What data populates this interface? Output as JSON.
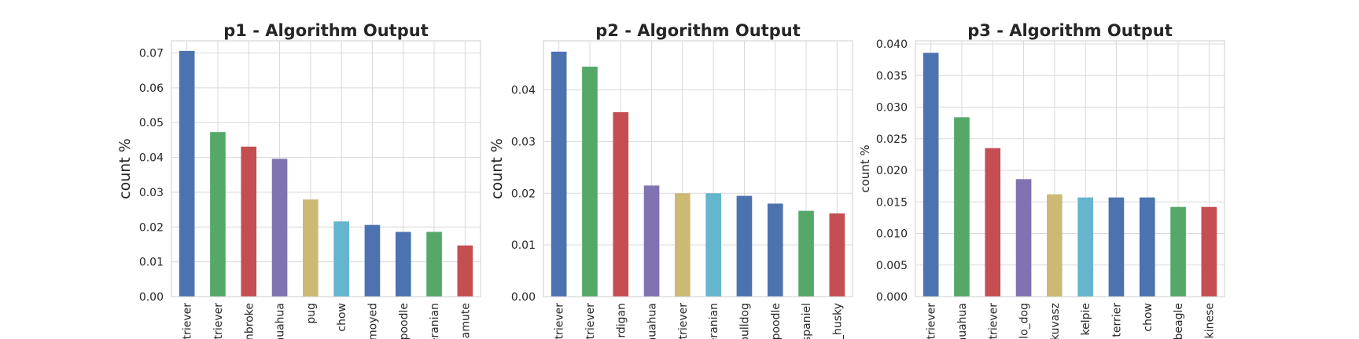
{
  "chart_data": [
    {
      "type": "bar",
      "title": "p1 - Algorithm Output",
      "xlabel": "",
      "ylabel": "count %",
      "ylim": [
        0,
        0.0735
      ],
      "yticks": [
        "0.00",
        "0.01",
        "0.02",
        "0.03",
        "0.04",
        "0.05",
        "0.06",
        "0.07"
      ],
      "categories": [
        "triever",
        "triever",
        "nbroke",
        "huahua",
        "pug",
        "chow",
        "moyed",
        "poodle",
        "eranian",
        "lamute"
      ],
      "values": [
        0.0706,
        0.0473,
        0.0431,
        0.0396,
        0.0279,
        0.0216,
        0.0206,
        0.0186,
        0.0186,
        0.0147
      ],
      "colors": [
        "#4c72b0",
        "#55a868",
        "#c44e52",
        "#8172b2",
        "#ccb974",
        "#64b5cd",
        "#4c72b0",
        "#4c72b0",
        "#55a868",
        "#c44e52"
      ],
      "grid": true
    },
    {
      "type": "bar",
      "title": "p2 - Algorithm Output",
      "xlabel": "",
      "ylabel": "count %",
      "ylim": [
        0,
        0.0495
      ],
      "yticks": [
        "0.00",
        "0.01",
        "0.02",
        "0.03",
        "0.04"
      ],
      "categories": [
        "triever",
        "triever",
        "rdigan",
        "huahua",
        "triever",
        "eranian",
        "bulldog",
        "poodle",
        "spaniel",
        "_husky"
      ],
      "values": [
        0.0474,
        0.0445,
        0.0357,
        0.0215,
        0.02,
        0.02,
        0.0195,
        0.018,
        0.0166,
        0.0161
      ],
      "colors": [
        "#4c72b0",
        "#55a868",
        "#c44e52",
        "#8172b2",
        "#ccb974",
        "#64b5cd",
        "#4c72b0",
        "#4c72b0",
        "#55a868",
        "#c44e52"
      ],
      "grid": true
    },
    {
      "type": "bar",
      "title": "p3 - Algorithm Output",
      "xlabel": "",
      "ylabel": "count %",
      "ylim": [
        0,
        0.0405
      ],
      "yticks": [
        "0.000",
        "0.005",
        "0.010",
        "0.015",
        "0.020",
        "0.025",
        "0.030",
        "0.035",
        "0.040"
      ],
      "categories": [
        "triever",
        "huahua",
        "triever",
        "lo_dog",
        "kuvasz",
        "kelpie",
        "terrier",
        "chow",
        "beagle",
        "kinese"
      ],
      "values": [
        0.0386,
        0.0284,
        0.0235,
        0.0186,
        0.0162,
        0.0157,
        0.0157,
        0.0157,
        0.0142,
        0.0142
      ],
      "colors": [
        "#4c72b0",
        "#55a868",
        "#c44e52",
        "#8172b2",
        "#ccb974",
        "#64b5cd",
        "#4c72b0",
        "#4c72b0",
        "#55a868",
        "#c44e52"
      ],
      "grid": true
    }
  ]
}
